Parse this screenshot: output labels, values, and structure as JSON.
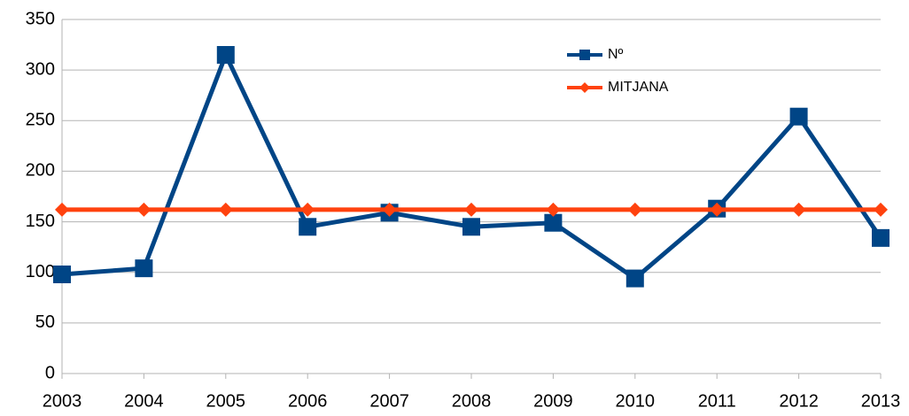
{
  "chart_data": {
    "type": "line",
    "categories": [
      "2003",
      "2004",
      "2005",
      "2006",
      "2007",
      "2008",
      "2009",
      "2010",
      "2011",
      "2012",
      "2013"
    ],
    "series": [
      {
        "name": "Nº",
        "color": "#004586",
        "marker": "square",
        "values": [
          98,
          104,
          315,
          145,
          159,
          145,
          149,
          94,
          163,
          254,
          134
        ]
      },
      {
        "name": "MITJANA",
        "color": "#ff420e",
        "marker": "diamond",
        "values": [
          162,
          162,
          162,
          162,
          162,
          162,
          162,
          162,
          162,
          162,
          162
        ]
      }
    ],
    "ylim": [
      0,
      350
    ],
    "yticks": [
      0,
      50,
      100,
      150,
      200,
      250,
      300,
      350
    ],
    "grid": true
  }
}
